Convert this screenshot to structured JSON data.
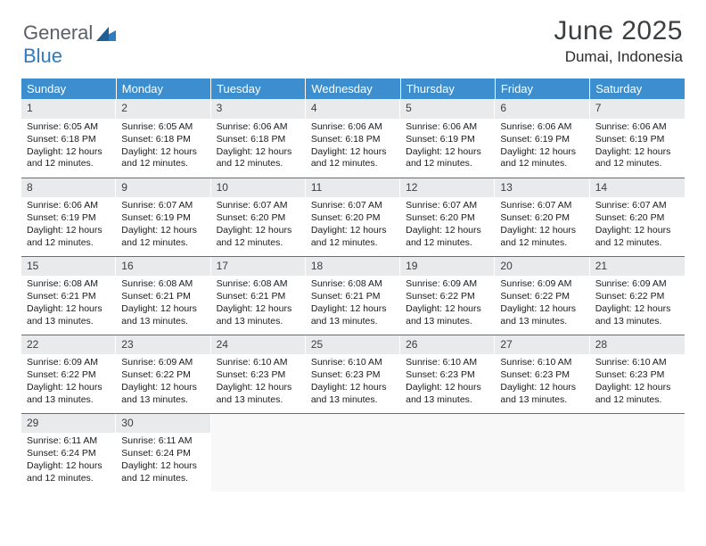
{
  "logo": {
    "text1": "General",
    "text2": "Blue"
  },
  "title": "June 2025",
  "location": "Dumai, Indonesia",
  "day_headers": [
    "Sunday",
    "Monday",
    "Tuesday",
    "Wednesday",
    "Thursday",
    "Friday",
    "Saturday"
  ],
  "colors": {
    "header_bg": "#3c8ecf",
    "header_text": "#ffffff",
    "row_border": "#2f7bbf",
    "daynum_bg": "#e9eaec",
    "logo_blue": "#2f7bbf"
  },
  "weeks": [
    [
      {
        "n": 1,
        "sr": "6:05 AM",
        "ss": "6:18 PM",
        "dl": "12 hours and 12 minutes."
      },
      {
        "n": 2,
        "sr": "6:05 AM",
        "ss": "6:18 PM",
        "dl": "12 hours and 12 minutes."
      },
      {
        "n": 3,
        "sr": "6:06 AM",
        "ss": "6:18 PM",
        "dl": "12 hours and 12 minutes."
      },
      {
        "n": 4,
        "sr": "6:06 AM",
        "ss": "6:18 PM",
        "dl": "12 hours and 12 minutes."
      },
      {
        "n": 5,
        "sr": "6:06 AM",
        "ss": "6:19 PM",
        "dl": "12 hours and 12 minutes."
      },
      {
        "n": 6,
        "sr": "6:06 AM",
        "ss": "6:19 PM",
        "dl": "12 hours and 12 minutes."
      },
      {
        "n": 7,
        "sr": "6:06 AM",
        "ss": "6:19 PM",
        "dl": "12 hours and 12 minutes."
      }
    ],
    [
      {
        "n": 8,
        "sr": "6:06 AM",
        "ss": "6:19 PM",
        "dl": "12 hours and 12 minutes."
      },
      {
        "n": 9,
        "sr": "6:07 AM",
        "ss": "6:19 PM",
        "dl": "12 hours and 12 minutes."
      },
      {
        "n": 10,
        "sr": "6:07 AM",
        "ss": "6:20 PM",
        "dl": "12 hours and 12 minutes."
      },
      {
        "n": 11,
        "sr": "6:07 AM",
        "ss": "6:20 PM",
        "dl": "12 hours and 12 minutes."
      },
      {
        "n": 12,
        "sr": "6:07 AM",
        "ss": "6:20 PM",
        "dl": "12 hours and 12 minutes."
      },
      {
        "n": 13,
        "sr": "6:07 AM",
        "ss": "6:20 PM",
        "dl": "12 hours and 12 minutes."
      },
      {
        "n": 14,
        "sr": "6:07 AM",
        "ss": "6:20 PM",
        "dl": "12 hours and 12 minutes."
      }
    ],
    [
      {
        "n": 15,
        "sr": "6:08 AM",
        "ss": "6:21 PM",
        "dl": "12 hours and 13 minutes."
      },
      {
        "n": 16,
        "sr": "6:08 AM",
        "ss": "6:21 PM",
        "dl": "12 hours and 13 minutes."
      },
      {
        "n": 17,
        "sr": "6:08 AM",
        "ss": "6:21 PM",
        "dl": "12 hours and 13 minutes."
      },
      {
        "n": 18,
        "sr": "6:08 AM",
        "ss": "6:21 PM",
        "dl": "12 hours and 13 minutes."
      },
      {
        "n": 19,
        "sr": "6:09 AM",
        "ss": "6:22 PM",
        "dl": "12 hours and 13 minutes."
      },
      {
        "n": 20,
        "sr": "6:09 AM",
        "ss": "6:22 PM",
        "dl": "12 hours and 13 minutes."
      },
      {
        "n": 21,
        "sr": "6:09 AM",
        "ss": "6:22 PM",
        "dl": "12 hours and 13 minutes."
      }
    ],
    [
      {
        "n": 22,
        "sr": "6:09 AM",
        "ss": "6:22 PM",
        "dl": "12 hours and 13 minutes."
      },
      {
        "n": 23,
        "sr": "6:09 AM",
        "ss": "6:22 PM",
        "dl": "12 hours and 13 minutes."
      },
      {
        "n": 24,
        "sr": "6:10 AM",
        "ss": "6:23 PM",
        "dl": "12 hours and 13 minutes."
      },
      {
        "n": 25,
        "sr": "6:10 AM",
        "ss": "6:23 PM",
        "dl": "12 hours and 13 minutes."
      },
      {
        "n": 26,
        "sr": "6:10 AM",
        "ss": "6:23 PM",
        "dl": "12 hours and 13 minutes."
      },
      {
        "n": 27,
        "sr": "6:10 AM",
        "ss": "6:23 PM",
        "dl": "12 hours and 13 minutes."
      },
      {
        "n": 28,
        "sr": "6:10 AM",
        "ss": "6:23 PM",
        "dl": "12 hours and 12 minutes."
      }
    ],
    [
      {
        "n": 29,
        "sr": "6:11 AM",
        "ss": "6:24 PM",
        "dl": "12 hours and 12 minutes."
      },
      {
        "n": 30,
        "sr": "6:11 AM",
        "ss": "6:24 PM",
        "dl": "12 hours and 12 minutes."
      },
      null,
      null,
      null,
      null,
      null
    ]
  ],
  "labels": {
    "sunrise": "Sunrise:",
    "sunset": "Sunset:",
    "daylight": "Daylight:"
  }
}
